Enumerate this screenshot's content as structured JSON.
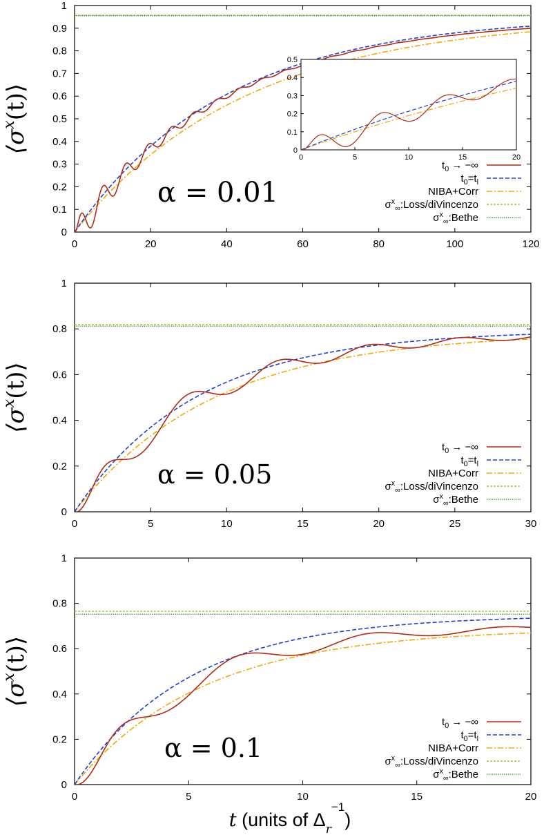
{
  "figure": {
    "xlabel_prefix": "t",
    "xlabel_units_text": " (units of Δ",
    "xlabel_units_sub": "r",
    "xlabel_units_sup": "−1",
    "xlabel_units_close": ")",
    "ylabel": "⟨σ",
    "ylabel_sup": "x",
    "ylabel_tail": "(t)⟩"
  },
  "legend_entries": [
    {
      "id": "t0_inf",
      "parts": [
        {
          "t": "t"
        },
        {
          "t": "0",
          "sub": true
        },
        {
          "t": " → −∞"
        }
      ],
      "color": "#b22a14",
      "dash": "none",
      "width": 1.6
    },
    {
      "id": "t0_tl",
      "parts": [
        {
          "t": "t"
        },
        {
          "t": "0",
          "sub": true
        },
        {
          "t": "=t"
        },
        {
          "t": "l",
          "sub": true
        }
      ],
      "color": "#1f3fd6",
      "dash": "6,3",
      "width": 1.6
    },
    {
      "id": "niba",
      "parts": [
        {
          "t": "NIBA+Corr"
        }
      ],
      "color": "#f0a800",
      "dash": "8,3,2,3",
      "width": 1.6
    },
    {
      "id": "loss",
      "parts": [
        {
          "t": "σ"
        },
        {
          "t": "x",
          "sup": true
        },
        {
          "t": "∞",
          "sub": true
        },
        {
          "t": ":Loss/diVincenzo"
        }
      ],
      "color": "#9ac23c",
      "dash": "3,2",
      "width": 1.4
    },
    {
      "id": "bethe",
      "parts": [
        {
          "t": "σ"
        },
        {
          "t": "x",
          "sup": true
        },
        {
          "t": "∞",
          "sub": true
        },
        {
          "t": ":Bethe"
        }
      ],
      "color": "#2a8a2a",
      "dash": "1.2,1.6",
      "width": 1.4
    }
  ],
  "chart_data": [
    {
      "type": "line",
      "annotation": "α = 0.01",
      "xlim": [
        0,
        120
      ],
      "ylim": [
        0,
        1
      ],
      "xticks": [
        0,
        20,
        40,
        60,
        80,
        100,
        120
      ],
      "xtick_labels": [
        "0",
        "20",
        "40",
        "60",
        "80",
        "100",
        "120"
      ],
      "yticks": [
        0,
        0.1,
        0.2,
        0.3,
        0.4,
        0.5,
        0.6,
        0.7,
        0.8,
        0.9,
        1
      ],
      "ytick_labels": [
        "0",
        "0.1",
        "0.2",
        "0.3",
        "0.4",
        "0.5",
        "0.6",
        "0.7",
        "0.8",
        "0.9",
        "1"
      ],
      "grid": false,
      "legend": "bottom-right",
      "params": {
        "rate": 0.0253,
        "plateau": 0.955,
        "limit_blue": 0.955,
        "limit_niba": 0.95,
        "limit_red": 0.945,
        "omega": 1.05,
        "amp": 0.68,
        "damp": 0.055,
        "loss": 0.957,
        "bethe": 0.955
      },
      "inset": {
        "xlim": [
          0,
          20
        ],
        "ylim": [
          0,
          0.5
        ],
        "xticks": [
          0,
          5,
          10,
          15,
          20
        ],
        "xtick_labels": [
          "0",
          "5",
          "10",
          "15",
          "20"
        ],
        "yticks": [
          0,
          0.1,
          0.2,
          0.3,
          0.4,
          0.5
        ],
        "ytick_labels": [
          "0",
          "0.1",
          "0.2",
          "0.3",
          "0.4",
          "0.5"
        ]
      }
    },
    {
      "type": "line",
      "annotation": "α = 0.05",
      "xlim": [
        0,
        30
      ],
      "ylim": [
        0,
        1
      ],
      "xticks": [
        0,
        5,
        10,
        15,
        20,
        25,
        30
      ],
      "xtick_labels": [
        "0",
        "5",
        "10",
        "15",
        "20",
        "25",
        "30"
      ],
      "yticks": [
        0,
        0.2,
        0.4,
        0.6,
        0.8,
        1
      ],
      "ytick_labels": [
        "0",
        "0.2",
        "0.4",
        "0.6",
        "0.8",
        "1"
      ],
      "grid": false,
      "legend": "bottom-right",
      "params": {
        "rate": 0.125,
        "plateau": 0.8,
        "limit_blue": 0.795,
        "limit_niba": 0.785,
        "limit_red": 0.785,
        "omega": 1.05,
        "amp": 0.72,
        "damp": 0.075,
        "loss": 0.818,
        "bethe": 0.812
      }
    },
    {
      "type": "line",
      "annotation": "α = 0.1",
      "xlim": [
        0,
        20
      ],
      "ylim": [
        0,
        1
      ],
      "xticks": [
        0,
        5,
        10,
        15,
        20
      ],
      "xtick_labels": [
        "0",
        "5",
        "10",
        "15",
        "20"
      ],
      "yticks": [
        0,
        0.2,
        0.4,
        0.6,
        0.8,
        1
      ],
      "ytick_labels": [
        "0",
        "0.2",
        "0.4",
        "0.6",
        "0.8",
        "1"
      ],
      "grid": false,
      "legend": "bottom-right",
      "params": {
        "rate": 0.2,
        "plateau": 0.75,
        "limit_blue": 0.748,
        "limit_niba": 0.69,
        "limit_red": 0.705,
        "omega": 1.08,
        "amp": 0.8,
        "damp": 0.12,
        "loss": 0.765,
        "bethe": 0.752
      }
    }
  ]
}
